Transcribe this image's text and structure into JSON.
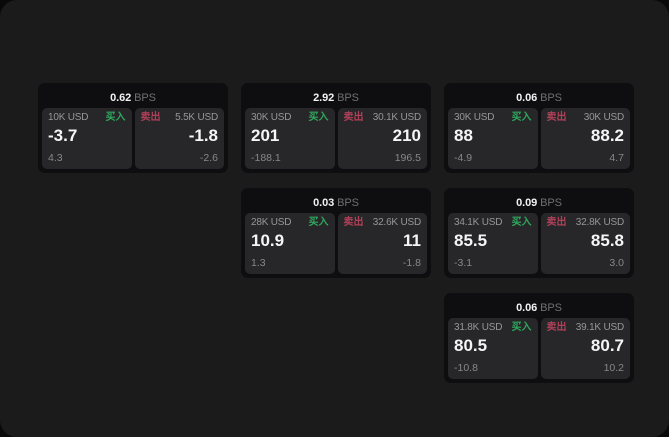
{
  "labels": {
    "bps_suffix": "BPS",
    "buy": "买入",
    "sell": "卖出"
  },
  "colors": {
    "buy": "#2fa85c",
    "sell": "#b04058",
    "page_bg": "#1b1b1c",
    "card_bg": "#0e0e10",
    "panel_bg": "#27272a"
  },
  "cards": [
    {
      "row": 1,
      "col": 1,
      "bps": "0.62",
      "buy": {
        "size": "10K USD",
        "value": "-3.7",
        "sub": "4.3"
      },
      "sell": {
        "size": "5.5K USD",
        "value": "-1.8",
        "sub": "-2.6"
      }
    },
    {
      "row": 1,
      "col": 2,
      "bps": "2.92",
      "buy": {
        "size": "30K USD",
        "value": "201",
        "sub": "-188.1"
      },
      "sell": {
        "size": "30.1K USD",
        "value": "210",
        "sub": "196.5"
      }
    },
    {
      "row": 1,
      "col": 3,
      "bps": "0.06",
      "buy": {
        "size": "30K USD",
        "value": "88",
        "sub": "-4.9"
      },
      "sell": {
        "size": "30K USD",
        "value": "88.2",
        "sub": "4.7"
      }
    },
    {
      "row": 2,
      "col": 2,
      "bps": "0.03",
      "buy": {
        "size": "28K USD",
        "value": "10.9",
        "sub": "1.3"
      },
      "sell": {
        "size": "32.6K USD",
        "value": "11",
        "sub": "-1.8"
      }
    },
    {
      "row": 2,
      "col": 3,
      "bps": "0.09",
      "buy": {
        "size": "34.1K USD",
        "value": "85.5",
        "sub": "-3.1"
      },
      "sell": {
        "size": "32.8K USD",
        "value": "85.8",
        "sub": "3.0"
      }
    },
    {
      "row": 3,
      "col": 3,
      "bps": "0.06",
      "buy": {
        "size": "31.8K USD",
        "value": "80.5",
        "sub": "-10.8"
      },
      "sell": {
        "size": "39.1K USD",
        "value": "80.7",
        "sub": "10.2"
      }
    }
  ]
}
